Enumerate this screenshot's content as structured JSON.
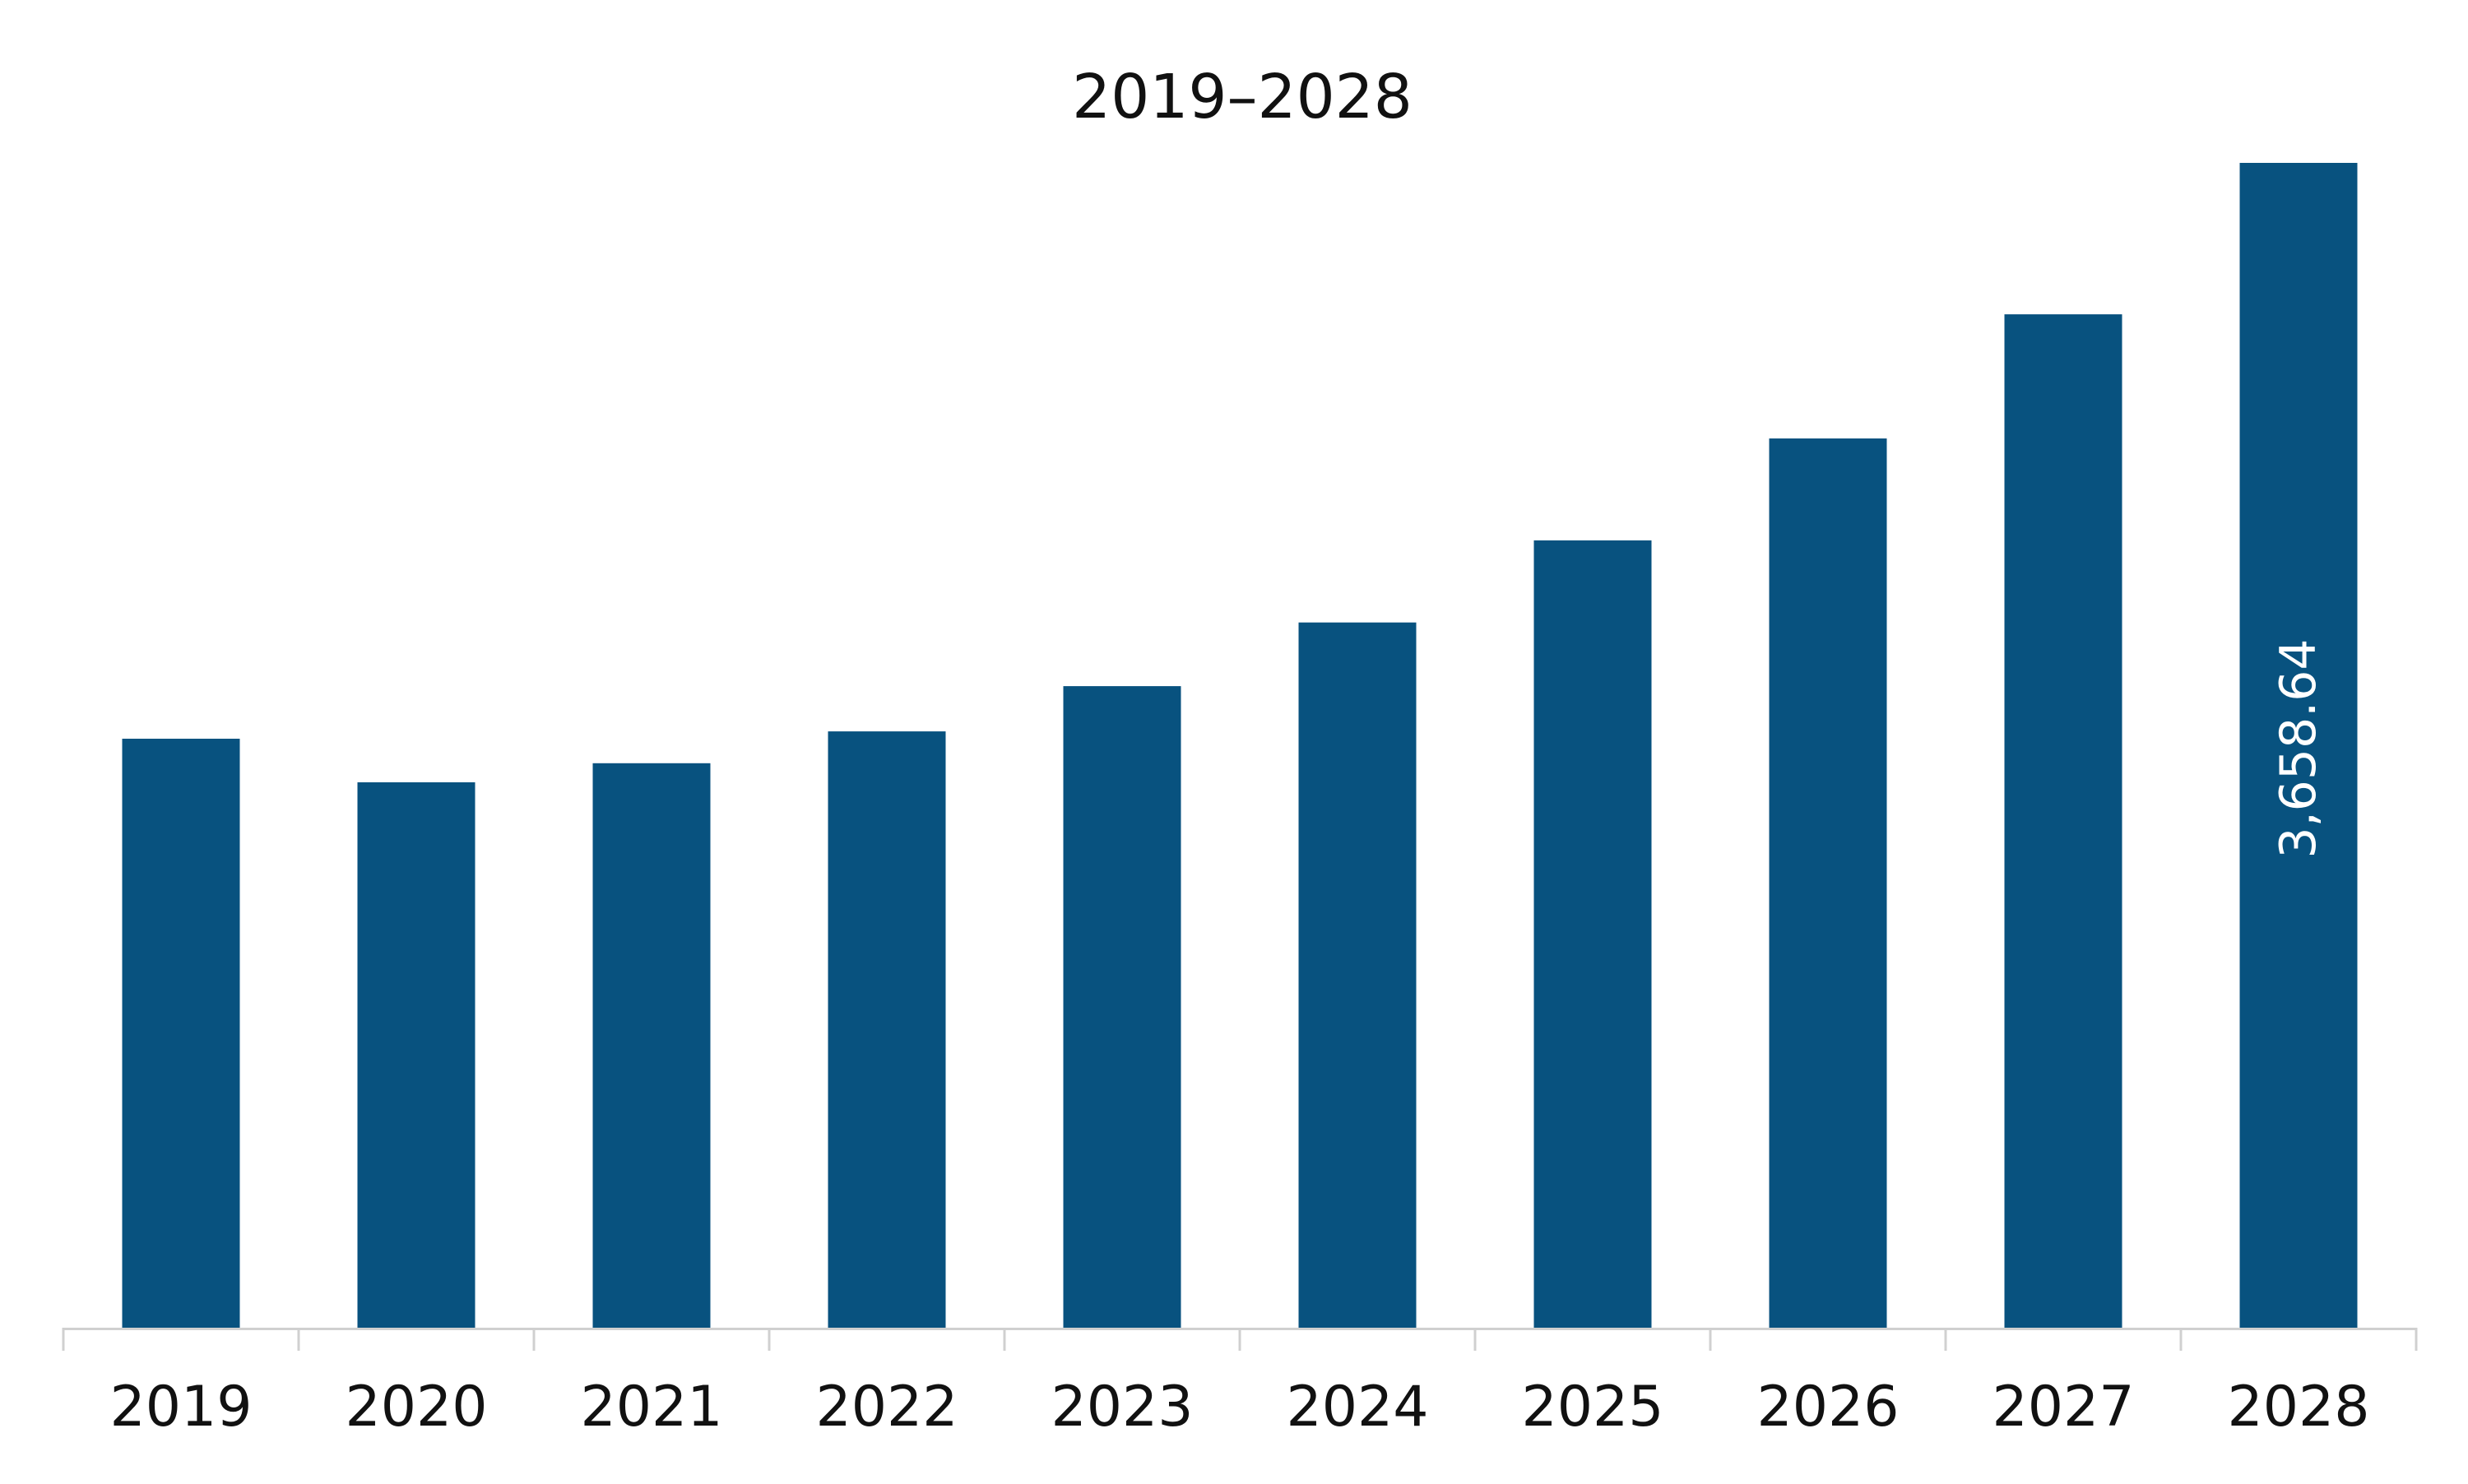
{
  "chart_data": {
    "type": "bar",
    "title": "2019–2028",
    "categories": [
      "2019",
      "2020",
      "2021",
      "2022",
      "2023",
      "2024",
      "2025",
      "2026",
      "2027",
      "2028"
    ],
    "values": [
      1850,
      1713,
      1773,
      1873,
      2015,
      2215,
      2473,
      2793,
      3183,
      3658.64
    ],
    "data_labels": [
      {
        "category": "2028",
        "text": "3,658.64"
      }
    ],
    "bar_color": "#08527f",
    "axis_color": "#d0d0d0",
    "ylim": [
      0,
      3658.64
    ],
    "grid": false,
    "legend": "none"
  }
}
